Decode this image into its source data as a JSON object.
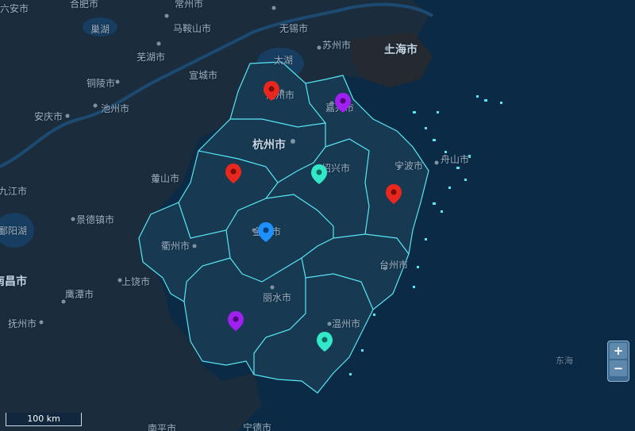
{
  "labels": {
    "heifei": "合肥市",
    "anqing_n": "六安市",
    "chaohu": "巢湖",
    "maanshan": "马鞍山市",
    "changzhou": "常州市",
    "wuxi": "无锡市",
    "suzhou": "苏州市",
    "shanghai": "上海市",
    "wuhu": "芜湖市",
    "taihu": "太湖",
    "tongling": "铜陵市",
    "xuancheng": "宣城市",
    "huzhou": "湖州市",
    "jiaxing": "嘉兴市",
    "anqing": "安庆市",
    "chizhou": "池州市",
    "hangzhou": "杭州市",
    "shaoxing": "绍兴市",
    "ningbo": "宁波市",
    "zhoushan": "舟山市",
    "huangshan": "黄山市",
    "jiujiang": "九江市",
    "jingdezhen": "景德镇市",
    "poyang": "鄱阳湖",
    "quzhou": "衢州市",
    "jinhua": "金华市",
    "taizhou": "台州市",
    "nanchang": "南昌市",
    "shangrao": "上饶市",
    "yingtan": "鹰潭市",
    "lishui": "丽水市",
    "fuzhou_jx": "抚州市",
    "wenzhou": "温州市",
    "donghai": "东海",
    "nanping": "南平市",
    "ningde": "宁德市"
  },
  "zoom": {
    "in": "+",
    "out": "−"
  },
  "scale": "100 km",
  "colors": {
    "red": "#e8281e",
    "purple": "#a020f0",
    "teal": "#33e8c8",
    "blue": "#1e90ff",
    "outline": "#58e6f5"
  }
}
